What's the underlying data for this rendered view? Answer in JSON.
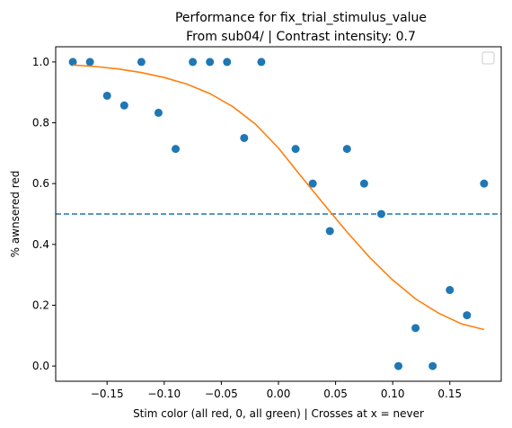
{
  "chart_data": {
    "type": "scatter",
    "title": "Performance for fix_trial_stimulus_value",
    "subtitle": "From sub04/ | Contrast intensity: 0.7",
    "xlabel": "Stim color (all red, 0, all green) | Crosses at x = never",
    "ylabel": "% awnsered red",
    "xlim": [
      -0.195,
      0.195
    ],
    "ylim": [
      -0.05,
      1.05
    ],
    "x_ticks": [
      -0.15,
      -0.1,
      -0.05,
      0.0,
      0.05,
      0.1,
      0.15
    ],
    "x_tick_labels": [
      "−0.15",
      "−0.10",
      "−0.05",
      "0.00",
      "0.05",
      "0.10",
      "0.15"
    ],
    "y_ticks": [
      0.0,
      0.2,
      0.4,
      0.6,
      0.8,
      1.0
    ],
    "y_tick_labels": [
      "0.0",
      "0.2",
      "0.4",
      "0.6",
      "0.8",
      "1.0"
    ],
    "grid": false,
    "legend": "top-right (empty)",
    "colors": {
      "points": "#1f77b4",
      "fit": "#ff7f0e",
      "threshold": "#1f77b4"
    },
    "threshold_line": {
      "y": 0.5,
      "style": "dashed"
    },
    "points": {
      "x": [
        -0.18,
        -0.165,
        -0.15,
        -0.135,
        -0.12,
        -0.105,
        -0.09,
        -0.075,
        -0.06,
        -0.045,
        -0.03,
        -0.015,
        0.015,
        0.03,
        0.045,
        0.06,
        0.075,
        0.09,
        0.105,
        0.12,
        0.135,
        0.15,
        0.165,
        0.18
      ],
      "y": [
        1.0,
        1.0,
        0.889,
        0.857,
        1.0,
        0.833,
        0.714,
        1.0,
        1.0,
        1.0,
        0.75,
        1.0,
        0.714,
        0.6,
        0.444,
        0.714,
        0.6,
        0.5,
        0.0,
        0.125,
        0.0,
        0.25,
        0.167,
        0.6
      ]
    },
    "fit_curve": {
      "x": [
        -0.18,
        -0.16,
        -0.14,
        -0.12,
        -0.1,
        -0.08,
        -0.06,
        -0.04,
        -0.02,
        0.0,
        0.02,
        0.04,
        0.06,
        0.08,
        0.1,
        0.12,
        0.14,
        0.16,
        0.18
      ],
      "y": [
        0.99,
        0.985,
        0.977,
        0.965,
        0.949,
        0.927,
        0.896,
        0.853,
        0.795,
        0.717,
        0.623,
        0.531,
        0.441,
        0.357,
        0.283,
        0.221,
        0.174,
        0.139,
        0.12
      ]
    }
  }
}
